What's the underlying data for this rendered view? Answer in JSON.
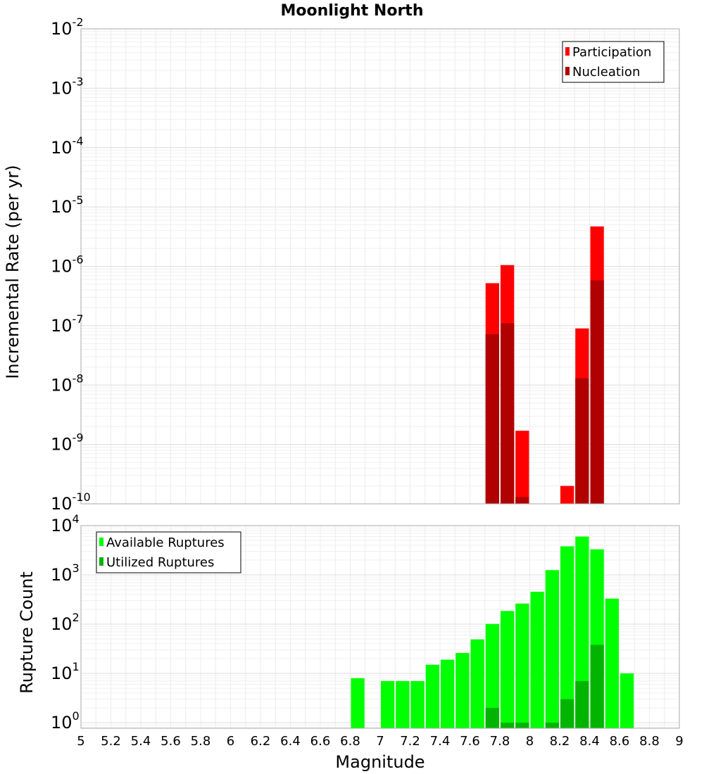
{
  "chart_data": [
    {
      "type": "bar",
      "title": "Moonlight North",
      "ylabel": "Incremental Rate (per yr)",
      "xlabel": "",
      "yscale": "log",
      "ylim": [
        1e-10,
        0.01
      ],
      "xlim": [
        5,
        9
      ],
      "bar_width": 0.1,
      "grid": true,
      "legend_position": "top-right",
      "y_ticks": [
        {
          "base": "10",
          "exp": "-2",
          "value": 0.01
        },
        {
          "base": "10",
          "exp": "-3",
          "value": 0.001
        },
        {
          "base": "10",
          "exp": "-4",
          "value": 0.0001
        },
        {
          "base": "10",
          "exp": "-5",
          "value": 1e-05
        },
        {
          "base": "10",
          "exp": "-6",
          "value": 1e-06
        },
        {
          "base": "10",
          "exp": "-7",
          "value": 1e-07
        },
        {
          "base": "10",
          "exp": "-8",
          "value": 1e-08
        },
        {
          "base": "10",
          "exp": "-9",
          "value": 1e-09
        },
        {
          "base": "10",
          "exp": "-10",
          "value": 1e-10
        }
      ],
      "series": [
        {
          "name": "Participation",
          "color": "#ff0000",
          "x": [
            7.75,
            7.85,
            7.95,
            8.25,
            8.35,
            8.45
          ],
          "values": [
            5.2e-07,
            1.05e-06,
            1.7e-09,
            2e-10,
            9e-08,
            4.7e-06
          ]
        },
        {
          "name": "Nucleation",
          "color": "#b00000",
          "x": [
            7.75,
            7.85,
            7.95,
            8.35,
            8.45
          ],
          "values": [
            7.2e-08,
            1.1e-07,
            1.3e-10,
            1.3e-08,
            5.8e-07
          ]
        }
      ]
    },
    {
      "type": "bar",
      "title": "",
      "ylabel": "Rupture Count",
      "xlabel": "Magnitude",
      "yscale": "log",
      "ylim": [
        0.77,
        10000
      ],
      "xlim": [
        5,
        9
      ],
      "bar_width": 0.1,
      "grid": true,
      "legend_position": "top-left",
      "x_ticks": [
        "5",
        "5.2",
        "5.4",
        "5.6",
        "5.8",
        "6",
        "6.2",
        "6.4",
        "6.6",
        "6.8",
        "7",
        "7.2",
        "7.4",
        "7.6",
        "7.8",
        "8",
        "8.2",
        "8.4",
        "8.6",
        "8.8",
        "9"
      ],
      "y_ticks": [
        {
          "base": "10",
          "exp": "4",
          "value": 10000
        },
        {
          "base": "10",
          "exp": "3",
          "value": 1000
        },
        {
          "base": "10",
          "exp": "2",
          "value": 100
        },
        {
          "base": "10",
          "exp": "1",
          "value": 10
        },
        {
          "base": "10",
          "exp": "0",
          "value": 1
        }
      ],
      "series": [
        {
          "name": "Available Ruptures",
          "color": "#00ff00",
          "x": [
            6.85,
            7.05,
            7.15,
            7.25,
            7.35,
            7.45,
            7.55,
            7.65,
            7.75,
            7.85,
            7.95,
            8.05,
            8.15,
            8.25,
            8.35,
            8.45,
            8.55,
            8.65
          ],
          "values": [
            8,
            7,
            7,
            7,
            15,
            19,
            26,
            49,
            101,
            185,
            262,
            455,
            1250,
            3800,
            6000,
            3300,
            330,
            10
          ]
        },
        {
          "name": "Utilized Ruptures",
          "color": "#00b400",
          "x": [
            7.75,
            7.85,
            7.95,
            8.15,
            8.25,
            8.35,
            8.45
          ],
          "values": [
            2,
            1,
            1,
            1,
            3,
            7,
            38
          ]
        }
      ]
    }
  ]
}
